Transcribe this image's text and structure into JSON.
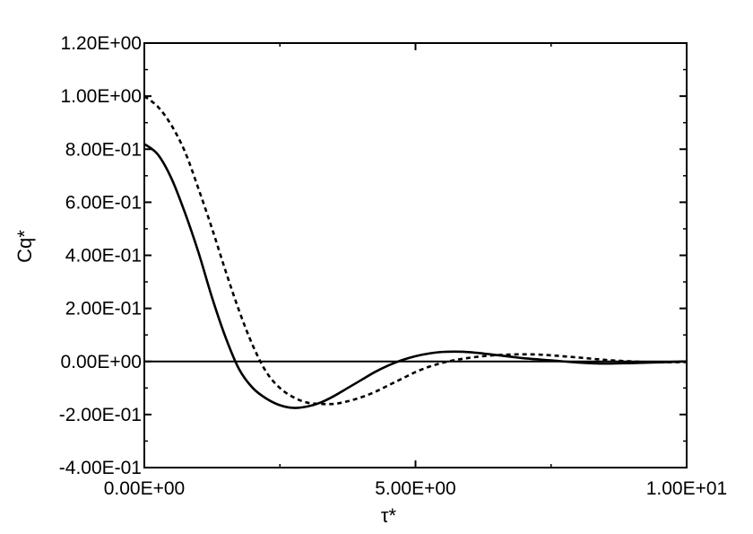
{
  "chart_data": {
    "type": "line",
    "title": "",
    "xlabel": "τ*",
    "ylabel": "Cq*",
    "xlim": [
      0,
      10
    ],
    "ylim": [
      -0.4,
      1.2
    ],
    "grid": false,
    "legend": "none",
    "x_ticks": [
      0,
      5,
      10
    ],
    "x_tick_labels": [
      "0.00E+00",
      "5.00E+00",
      "1.00E+01"
    ],
    "y_ticks": [
      -0.4,
      -0.2,
      0,
      0.2,
      0.4,
      0.6,
      0.8,
      1.0,
      1.2
    ],
    "y_tick_labels": [
      "-4.00E-01",
      "-2.00E-01",
      "0.00E+00",
      "2.00E-01",
      "4.00E-01",
      "6.00E-01",
      "8.00E-01",
      "1.00E+00",
      "1.20E+00"
    ],
    "reference_line_y": 0,
    "series": [
      {
        "style": "solid",
        "color": "#000000",
        "x": [
          0,
          0.25,
          0.5,
          0.75,
          1.0,
          1.25,
          1.5,
          1.75,
          2.0,
          2.25,
          2.5,
          2.75,
          3.0,
          3.25,
          3.5,
          3.75,
          4.0,
          4.25,
          4.5,
          4.75,
          5.0,
          5.25,
          5.5,
          5.75,
          6.0,
          6.25,
          6.5,
          6.75,
          7.0,
          7.5,
          8.0,
          8.5,
          9.0,
          9.5,
          10.0
        ],
        "values": [
          0.82,
          0.78,
          0.69,
          0.56,
          0.41,
          0.24,
          0.09,
          -0.03,
          -0.1,
          -0.14,
          -0.165,
          -0.175,
          -0.17,
          -0.155,
          -0.13,
          -0.1,
          -0.07,
          -0.04,
          -0.015,
          0.005,
          0.02,
          0.03,
          0.036,
          0.037,
          0.035,
          0.03,
          0.024,
          0.018,
          0.012,
          0.004,
          -0.004,
          -0.008,
          -0.006,
          -0.003,
          0.0
        ]
      },
      {
        "style": "dashed",
        "color": "#000000",
        "x": [
          0,
          0.25,
          0.5,
          0.75,
          1.0,
          1.25,
          1.5,
          1.75,
          2.0,
          2.25,
          2.5,
          2.75,
          3.0,
          3.25,
          3.5,
          3.75,
          4.0,
          4.25,
          4.5,
          4.75,
          5.0,
          5.25,
          5.5,
          5.75,
          6.0,
          6.25,
          6.5,
          6.75,
          7.0,
          7.25,
          7.5,
          8.0,
          8.5,
          9.0,
          9.5,
          10.0
        ],
        "values": [
          1.0,
          0.96,
          0.89,
          0.79,
          0.65,
          0.5,
          0.34,
          0.19,
          0.06,
          -0.04,
          -0.1,
          -0.135,
          -0.155,
          -0.16,
          -0.16,
          -0.15,
          -0.135,
          -0.115,
          -0.09,
          -0.065,
          -0.04,
          -0.02,
          -0.005,
          0.006,
          0.014,
          0.02,
          0.024,
          0.026,
          0.027,
          0.026,
          0.023,
          0.015,
          0.006,
          0.0,
          -0.003,
          -0.002
        ]
      }
    ]
  }
}
